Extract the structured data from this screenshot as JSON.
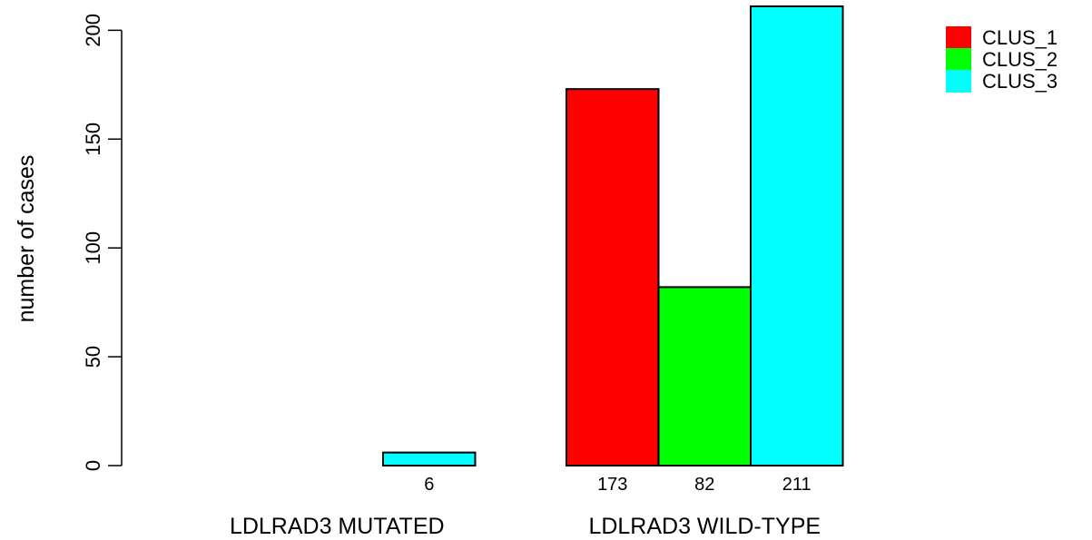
{
  "chart_data": {
    "type": "bar",
    "ylabel": "number of cases",
    "ylim": [
      0,
      211
    ],
    "yticks": [
      0,
      50,
      100,
      150,
      200
    ],
    "categories": [
      "LDLRAD3 MUTATED",
      "LDLRAD3 WILD-TYPE"
    ],
    "series": [
      {
        "name": "CLUS_1",
        "color": "#ff0000",
        "values": [
          0,
          173
        ]
      },
      {
        "name": "CLUS_2",
        "color": "#00ff00",
        "values": [
          0,
          82
        ]
      },
      {
        "name": "CLUS_3",
        "color": "#00ffff",
        "values": [
          6,
          211
        ]
      }
    ],
    "data_labels": [
      [
        "",
        "",
        "6"
      ],
      [
        "173",
        "82",
        "211"
      ]
    ],
    "legend_position": "top-right",
    "grid": false
  }
}
